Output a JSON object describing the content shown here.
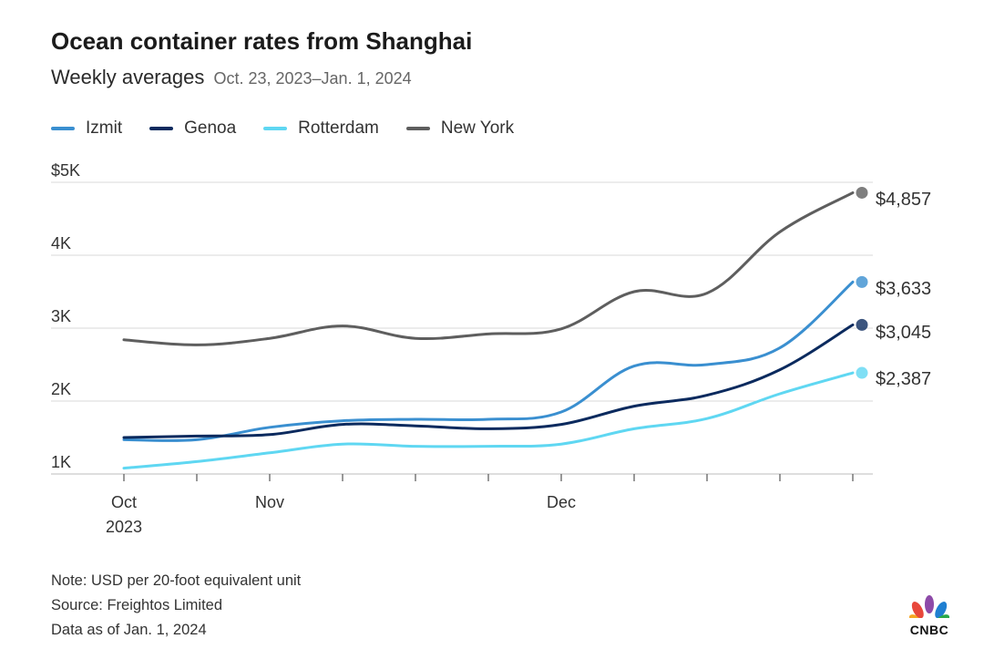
{
  "header": {
    "title": "Ocean container rates from Shanghai",
    "subtitle": "Weekly averages",
    "date_range": "Oct. 23, 2023–Jan. 1, 2024"
  },
  "chart_data": {
    "type": "line",
    "ylim": [
      1000,
      5000
    ],
    "y_ticks": [
      {
        "value": 5000,
        "label": "$5K"
      },
      {
        "value": 4000,
        "label": "4K"
      },
      {
        "value": 3000,
        "label": "3K"
      },
      {
        "value": 2000,
        "label": "2K"
      },
      {
        "value": 1000,
        "label": "1K"
      }
    ],
    "x": [
      0,
      1,
      2,
      3,
      4,
      5,
      6,
      7,
      8,
      9,
      10
    ],
    "x_tick_labels": [
      {
        "index": 0,
        "label": "Oct",
        "sublabel": "2023"
      },
      {
        "index": 2,
        "label": "Nov"
      },
      {
        "index": 6,
        "label": "Dec"
      }
    ],
    "series": [
      {
        "name": "Izmit",
        "color": "#3a8fd0",
        "end_label": "$3,633",
        "values": [
          1470,
          1470,
          1640,
          1730,
          1750,
          1750,
          1850,
          2480,
          2500,
          2730,
          3633
        ]
      },
      {
        "name": "Genoa",
        "color": "#0b2a5e",
        "end_label": "$3,045",
        "values": [
          1500,
          1520,
          1540,
          1680,
          1660,
          1620,
          1680,
          1930,
          2080,
          2430,
          3045
        ]
      },
      {
        "name": "Rotterdam",
        "color": "#5fd7f2",
        "end_label": "$2,387",
        "values": [
          1080,
          1170,
          1290,
          1410,
          1380,
          1380,
          1410,
          1620,
          1760,
          2100,
          2387
        ]
      },
      {
        "name": "New York",
        "color": "#5e5e5e",
        "end_label": "$4,857",
        "values": [
          2840,
          2770,
          2860,
          3030,
          2860,
          2920,
          2990,
          3500,
          3480,
          4320,
          4857
        ]
      }
    ]
  },
  "notes": {
    "note": "Note: USD per 20-foot equivalent unit",
    "source": "Source: Freightos Limited",
    "data_as_of": "Data as of Jan. 1, 2024"
  },
  "logo": {
    "text": "CNBC"
  }
}
